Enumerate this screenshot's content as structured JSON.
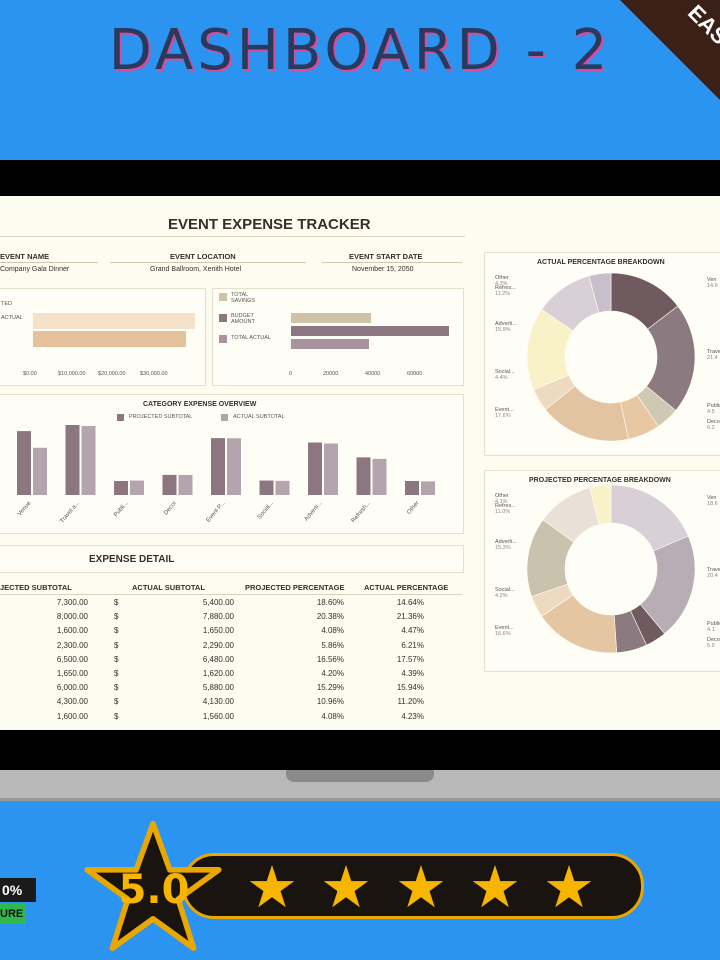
{
  "banner": {
    "title": "DASHBOARD - 2",
    "corner": "EAS"
  },
  "tracker": {
    "title": "EVENT EXPENSE TRACKER",
    "event_name_label": "EVENT NAME",
    "event_name": "Company Gala Dinner",
    "event_location_label": "EVENT LOCATION",
    "event_location": "Grand Ballroom, Xenith Hotel",
    "event_start_label": "EVENT START DATE",
    "event_start": "November 15, 2050"
  },
  "totals_chart": {
    "labels": [
      "TED",
      "ACTUAL"
    ],
    "ticks": [
      "$0.00",
      "$10,000.00",
      "$20,000.00",
      "$30,000.00"
    ],
    "colors": [
      "#f3e2c9",
      "#e6c29c"
    ]
  },
  "budget_chart": {
    "legend": [
      "TOTAL SAVINGS",
      "BUDGET AMOUNT",
      "TOTAL ACTUAL"
    ],
    "legend_lines": [
      [
        "TOTAL",
        "SAVINGS"
      ],
      [
        "BUDGET",
        "AMOUNT"
      ],
      [
        "TOTAL ACTUAL"
      ]
    ],
    "ticks": [
      "0",
      "20000",
      "40000",
      "60000"
    ],
    "colors": [
      "#cfc2a6",
      "#8c7680",
      "#a8939e"
    ]
  },
  "chart_data": [
    {
      "type": "bar",
      "title": "CATEGORY EXPENSE OVERVIEW",
      "categories": [
        "Venue",
        "Travel a...",
        "Publi...",
        "Decor",
        "Event P...",
        "Social...",
        "Adverti...",
        "Refresh...",
        "Other"
      ],
      "series": [
        {
          "name": "PROJECTED SUBTOTAL",
          "values": [
            7300,
            8000,
            1600,
            2300,
            6500,
            1650,
            6000,
            4300,
            1600
          ],
          "color": "#8c7680"
        },
        {
          "name": "ACTUAL SUBTOTAL",
          "values": [
            5400,
            7880,
            1650,
            2290,
            6480,
            1620,
            5880,
            4130,
            1560
          ],
          "color": "#b3a4ad"
        }
      ]
    },
    {
      "type": "pie",
      "title": "ACTUAL PERCENTAGE BREAKDOWN",
      "labels": [
        "Ven...",
        "Travel",
        "Public",
        "Decor",
        "Event",
        "Social",
        "Adverti",
        "Refres",
        "Other"
      ],
      "values": [
        14.64,
        21.36,
        4.47,
        6.21,
        17.57,
        4.39,
        15.94,
        11.2,
        4.23
      ],
      "colors": [
        "#6f5a60",
        "#8b7b80",
        "#cfc9b4",
        "#e8c8a2",
        "#e2c4a2",
        "#eedbbf",
        "#f9f2c9",
        "#d8cfd7",
        "#c9bfca"
      ]
    },
    {
      "type": "pie",
      "title": "PROJECTED PERCENTAGE BREAKDOWN",
      "labels": [
        "Ven...",
        "Travel",
        "Public",
        "Decor",
        "Event",
        "Social",
        "Adverti",
        "Refres",
        "Other"
      ],
      "values": [
        18.6,
        20.38,
        4.08,
        5.86,
        16.56,
        4.2,
        15.29,
        10.96,
        4.08
      ],
      "colors": [
        "#d8cfd7",
        "#b9adb5",
        "#6f5a60",
        "#8b7b80",
        "#e5c6a2",
        "#eedbbf",
        "#c9c3ad",
        "#e9e1d6",
        "#f9f2c9"
      ]
    }
  ],
  "overview": {
    "title": "CATEGORY EXPENSE OVERVIEW",
    "legend": [
      "PROJECTED SUBTOTAL",
      "ACTUAL SUBTOTAL"
    ]
  },
  "actual_pie": {
    "title": "ACTUAL PERCENTAGE BREAKDOWN",
    "left_labels": [
      [
        "Other",
        "4.2%"
      ],
      [
        "Refres...",
        "11.2%"
      ],
      [
        "Adverti...",
        "15.9%"
      ],
      [
        "Social...",
        "4.4%"
      ],
      [
        "Event...",
        "17.6%"
      ]
    ],
    "right_labels": [
      [
        "Ven",
        "14.6"
      ],
      [
        "Travel",
        "21.4"
      ],
      [
        "Public",
        "4.5"
      ],
      [
        "Decor",
        "6.2"
      ]
    ]
  },
  "projected_pie": {
    "title": "PROJECTED PERCENTAGE BREAKDOWN",
    "left_labels": [
      [
        "Other",
        "4.1%"
      ],
      [
        "Refres...",
        "11.0%"
      ],
      [
        "Adverti...",
        "15.3%"
      ],
      [
        "Social...",
        "4.2%"
      ],
      [
        "Event...",
        "16.6%"
      ]
    ],
    "right_labels": [
      [
        "Ven",
        "18.6"
      ],
      [
        "Travel",
        "20.4"
      ],
      [
        "Public",
        "4.1"
      ],
      [
        "Decor",
        "5.9"
      ]
    ]
  },
  "detail": {
    "title": "EXPENSE DETAIL",
    "headers": [
      "PROJECTED SUBTOTAL",
      "ACTUAL SUBTOTAL",
      "PROJECTED PERCENTAGE",
      "ACTUAL PERCENTAGE"
    ],
    "headers_visible": [
      "JECTED SUBTOTAL",
      "ACTUAL SUBTOTAL",
      "PROJECTED PERCENTAGE",
      "ACTUAL PERCENTAGE"
    ],
    "currency": "$",
    "rows": [
      [
        "7,300.00",
        "5,400.00",
        "18.60%",
        "14.64%"
      ],
      [
        "8,000.00",
        "7,880.00",
        "20.38%",
        "21.36%"
      ],
      [
        "1,600.00",
        "1,650.00",
        "4.08%",
        "4.47%"
      ],
      [
        "2,300.00",
        "2,290.00",
        "5.86%",
        "6.21%"
      ],
      [
        "6,500.00",
        "6,480.00",
        "16.56%",
        "17.57%"
      ],
      [
        "1,650.00",
        "1,620.00",
        "4.20%",
        "4.39%"
      ],
      [
        "6,000.00",
        "5,880.00",
        "15.29%",
        "15.94%"
      ],
      [
        "4,300.00",
        "4,130.00",
        "10.96%",
        "11.20%"
      ],
      [
        "1,600.00",
        "1,560.00",
        "4.08%",
        "4.23%"
      ]
    ]
  },
  "rating": {
    "value": "5.0",
    "stars": 5
  },
  "badge": {
    "pct": "0%",
    "sure": "URE"
  }
}
